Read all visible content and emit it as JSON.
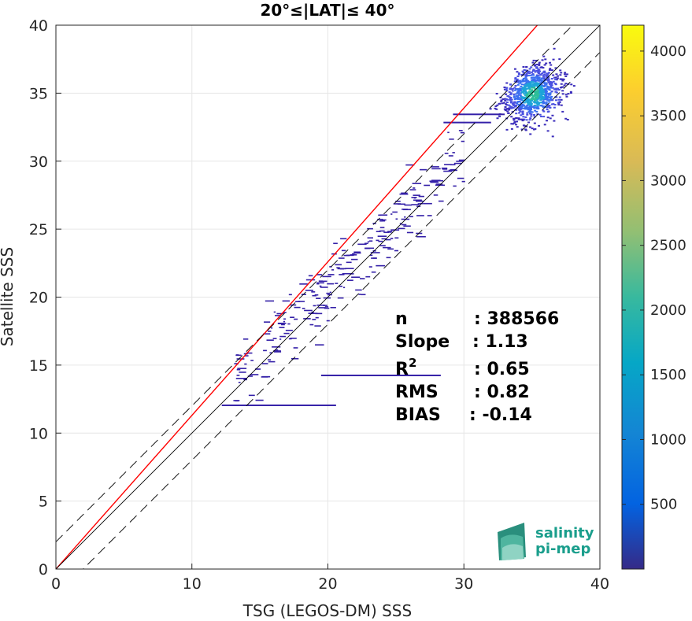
{
  "chart_data": {
    "type": "heatmap",
    "title": "20°≤|LAT|≤ 40°",
    "xlabel": "TSG (LEGOS-DM) SSS",
    "ylabel": "Satellite SSS",
    "xlim": [
      0,
      40
    ],
    "ylim": [
      0,
      40
    ],
    "x_ticks": [
      "0",
      "10",
      "20",
      "30",
      "40"
    ],
    "y_ticks": [
      "0",
      "5",
      "10",
      "15",
      "20",
      "25",
      "30",
      "35",
      "40"
    ],
    "grid": true,
    "colorbar": {
      "range": [
        0,
        4200
      ],
      "ticks": [
        "500",
        "1000",
        "1500",
        "2000",
        "2500",
        "3000",
        "3500",
        "4000"
      ],
      "colormap": "parula"
    },
    "lines": [
      {
        "kind": "regression",
        "color": "#ff0000",
        "slope": 1.13
      },
      {
        "kind": "identity",
        "color": "#000000",
        "offset": 0
      },
      {
        "kind": "identity-minus-2",
        "color": "#000000",
        "offset": -2,
        "style": "dashed"
      },
      {
        "kind": "identity-plus-2",
        "color": "#000000",
        "offset": 2,
        "style": "dashed"
      }
    ],
    "density_core": {
      "x": 35,
      "y": 35,
      "peak_count": 4200
    },
    "stats": {
      "labels": [
        "n",
        "Slope",
        "R2",
        "RMS",
        "BIAS"
      ],
      "values": [
        ": 388566",
        ": 1.13",
        ": 0.65",
        ": 0.82",
        ": -0.14"
      ]
    }
  },
  "logo": {
    "line1": "salinity",
    "line2": "pi-mep",
    "color": "#1a9e8c"
  }
}
